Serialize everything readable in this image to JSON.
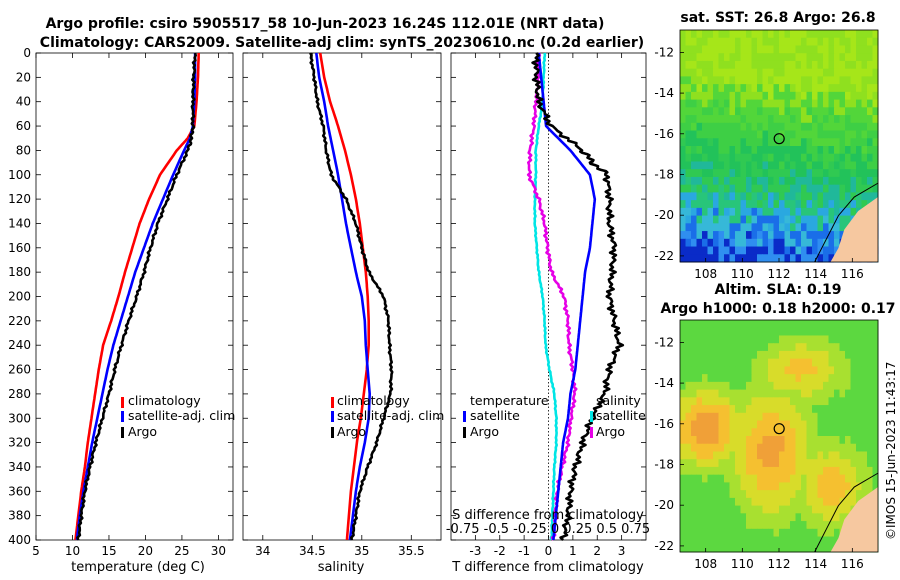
{
  "titles": {
    "line1": "Argo profile: csiro 5905517_58 10-Jun-2023 16.24S 112.01E (NRT data)",
    "line2": "Climatology: CARS2009. Satellite-adj clim: synTS_20230610.nc (0.2d earlier)",
    "sst": "sat. SST: 26.8 Argo: 26.8",
    "sla1": "Altim. SLA: 0.19",
    "sla2": "Argo h1000: 0.18 h2000: 0.17"
  },
  "side_label": "©IMOS 15-Jun-2023 11:43:17",
  "colors": {
    "climatology": "#ff0000",
    "satellite": "#0000ff",
    "argo": "#000000",
    "sat_salinity": "#00e5e5",
    "argo_salinity": "#e600e6"
  },
  "chart_data": [
    {
      "type": "line",
      "name": "temperature",
      "xlabel": "temperature (deg C)",
      "ylabel": "",
      "xlim": [
        5,
        32
      ],
      "ylim": [
        400,
        0
      ],
      "xticks": [
        "5",
        "10",
        "15",
        "20",
        "25",
        "30"
      ],
      "yticks": [
        "0",
        "20",
        "40",
        "60",
        "80",
        "100",
        "120",
        "140",
        "160",
        "180",
        "200",
        "220",
        "240",
        "260",
        "280",
        "300",
        "320",
        "340",
        "360",
        "380",
        "400"
      ],
      "legend": [
        "climatology",
        "satellite-adj. clim",
        "Argo"
      ],
      "series": [
        {
          "name": "climatology",
          "depth": [
            0,
            20,
            40,
            60,
            70,
            80,
            100,
            120,
            140,
            160,
            180,
            200,
            220,
            240,
            260,
            280,
            300,
            320,
            340,
            360,
            380,
            400
          ],
          "values": [
            27.3,
            27.2,
            27.0,
            26.7,
            25.8,
            24.3,
            22.0,
            20.5,
            19.2,
            18.2,
            17.2,
            16.3,
            15.3,
            14.2,
            13.6,
            13.1,
            12.6,
            12.1,
            11.7,
            11.2,
            10.8,
            10.4
          ]
        },
        {
          "name": "satellite-adj. clim",
          "depth": [
            0,
            20,
            40,
            60,
            70,
            80,
            100,
            120,
            140,
            160,
            180,
            200,
            220,
            240,
            260,
            280,
            300,
            320,
            340,
            360,
            380,
            400
          ],
          "values": [
            26.8,
            26.8,
            26.7,
            26.5,
            26.1,
            25.3,
            23.8,
            22.4,
            21.0,
            19.8,
            18.6,
            17.6,
            16.6,
            15.6,
            14.8,
            14.1,
            13.4,
            12.7,
            12.1,
            11.5,
            11.0,
            10.6
          ]
        },
        {
          "name": "Argo",
          "depth": [
            0,
            20,
            40,
            60,
            70,
            80,
            100,
            120,
            140,
            160,
            180,
            200,
            220,
            240,
            260,
            280,
            300,
            320,
            340,
            360,
            380,
            400
          ],
          "values": [
            26.8,
            26.6,
            26.5,
            26.5,
            26.3,
            25.8,
            24.3,
            23.0,
            21.7,
            20.7,
            19.8,
            18.8,
            17.7,
            16.7,
            15.8,
            15.0,
            14.1,
            13.2,
            12.4,
            11.7,
            11.2,
            10.8
          ]
        }
      ]
    },
    {
      "type": "line",
      "name": "salinity",
      "xlabel": "salinity",
      "xlim": [
        33.8,
        35.8
      ],
      "ylim": [
        400,
        0
      ],
      "xticks": [
        "34",
        "34.5",
        "35",
        "35.5"
      ],
      "legend": [
        "climatology",
        "satellite-adj. clim",
        "Argo"
      ],
      "series": [
        {
          "name": "climatology",
          "depth": [
            0,
            20,
            40,
            60,
            80,
            100,
            120,
            140,
            160,
            180,
            200,
            220,
            240,
            260,
            280,
            300,
            320,
            340,
            360,
            380,
            400
          ],
          "values": [
            34.58,
            34.62,
            34.68,
            34.76,
            34.83,
            34.89,
            34.94,
            34.98,
            35.01,
            35.04,
            35.06,
            35.07,
            35.07,
            35.05,
            35.02,
            34.99,
            34.95,
            34.92,
            34.89,
            34.87,
            34.85
          ]
        },
        {
          "name": "satellite-adj. clim",
          "depth": [
            0,
            20,
            40,
            60,
            80,
            100,
            120,
            140,
            160,
            180,
            200,
            220,
            240,
            260,
            280,
            300,
            320,
            340,
            360,
            380,
            400
          ],
          "values": [
            34.54,
            34.57,
            34.62,
            34.66,
            34.71,
            34.76,
            34.8,
            34.84,
            34.89,
            34.94,
            35.0,
            35.03,
            35.04,
            35.06,
            35.08,
            35.07,
            35.03,
            34.98,
            34.94,
            34.91,
            34.88
          ]
        },
        {
          "name": "Argo",
          "depth": [
            0,
            20,
            40,
            60,
            80,
            100,
            120,
            140,
            160,
            180,
            200,
            220,
            240,
            260,
            280,
            300,
            320,
            340,
            360,
            380,
            400
          ],
          "values": [
            34.48,
            34.52,
            34.55,
            34.61,
            34.64,
            34.69,
            34.84,
            34.94,
            35.0,
            35.07,
            35.22,
            35.27,
            35.28,
            35.3,
            35.29,
            35.22,
            35.15,
            35.06,
            34.98,
            34.94,
            34.9
          ]
        }
      ]
    },
    {
      "type": "line",
      "name": "difference",
      "xlabel": "T difference from climatology",
      "xlim": [
        -4,
        4
      ],
      "ylim": [
        400,
        0
      ],
      "xticks": [
        "-3",
        "-2",
        "-1",
        "0",
        "1",
        "2",
        "3"
      ],
      "s_axis_label": "S difference from climatology",
      "s_ticks": "-0.75 -0.5 -0.25   0   0.25 0.5 0.75",
      "legend_temperature": [
        "temperature",
        "satellite",
        "Argo"
      ],
      "legend_salinity": [
        "salinity",
        "satellite",
        "Argo"
      ],
      "series": [
        {
          "name": "T satellite",
          "depth": [
            0,
            20,
            40,
            60,
            80,
            100,
            120,
            140,
            160,
            180,
            200,
            220,
            240,
            260,
            280,
            300,
            320,
            340,
            360,
            380,
            400
          ],
          "values": [
            -0.4,
            -0.3,
            -0.2,
            -0.1,
            0.9,
            1.7,
            1.9,
            1.8,
            1.7,
            1.5,
            1.4,
            1.3,
            1.2,
            1.1,
            0.9,
            0.8,
            0.6,
            0.5,
            0.4,
            0.3,
            0.2
          ]
        },
        {
          "name": "T Argo",
          "depth": [
            0,
            20,
            40,
            60,
            80,
            90,
            100,
            120,
            140,
            160,
            180,
            200,
            220,
            240,
            260,
            280,
            300,
            320,
            340,
            360,
            380,
            400
          ],
          "values": [
            -0.5,
            -0.5,
            -0.4,
            0.1,
            1.4,
            1.8,
            2.4,
            2.5,
            2.5,
            2.7,
            2.6,
            2.5,
            2.7,
            2.9,
            2.5,
            2.3,
            1.8,
            1.4,
            1.1,
            0.9,
            0.8,
            0.6
          ]
        },
        {
          "name": "S satellite",
          "depth": [
            0,
            20,
            40,
            60,
            80,
            100,
            120,
            140,
            160,
            180,
            200,
            220,
            240,
            260,
            280,
            300,
            320,
            340,
            360,
            380,
            400
          ],
          "values": [
            -0.04,
            -0.05,
            -0.06,
            -0.1,
            -0.13,
            -0.13,
            -0.14,
            -0.14,
            -0.12,
            -0.1,
            -0.06,
            -0.04,
            -0.03,
            0.01,
            0.06,
            0.08,
            0.08,
            0.06,
            0.05,
            0.04,
            0.03
          ]
        },
        {
          "name": "S Argo",
          "depth": [
            0,
            20,
            40,
            60,
            80,
            100,
            120,
            140,
            160,
            180,
            200,
            220,
            240,
            260,
            280,
            300,
            320,
            340,
            360,
            380,
            400
          ],
          "values": [
            -0.1,
            -0.1,
            -0.13,
            -0.15,
            -0.19,
            -0.2,
            -0.1,
            -0.04,
            -0.01,
            0.03,
            0.16,
            0.2,
            0.21,
            0.25,
            0.27,
            0.23,
            0.2,
            0.14,
            0.09,
            0.07,
            0.05
          ]
        }
      ]
    },
    {
      "type": "heatmap",
      "name": "sst-map",
      "yticks": [
        "-12",
        "-14",
        "-16",
        "-18",
        "-20",
        "-22"
      ],
      "xticks": [
        "108",
        "110",
        "112",
        "114",
        "116"
      ],
      "marker": {
        "lon": 112.01,
        "lat": -16.24
      }
    },
    {
      "type": "heatmap",
      "name": "sla-map",
      "yticks": [
        "-12",
        "-14",
        "-16",
        "-18",
        "-20",
        "-22"
      ],
      "xticks": [
        "108",
        "110",
        "112",
        "114",
        "116"
      ],
      "marker": {
        "lon": 112.01,
        "lat": -16.24
      }
    }
  ]
}
